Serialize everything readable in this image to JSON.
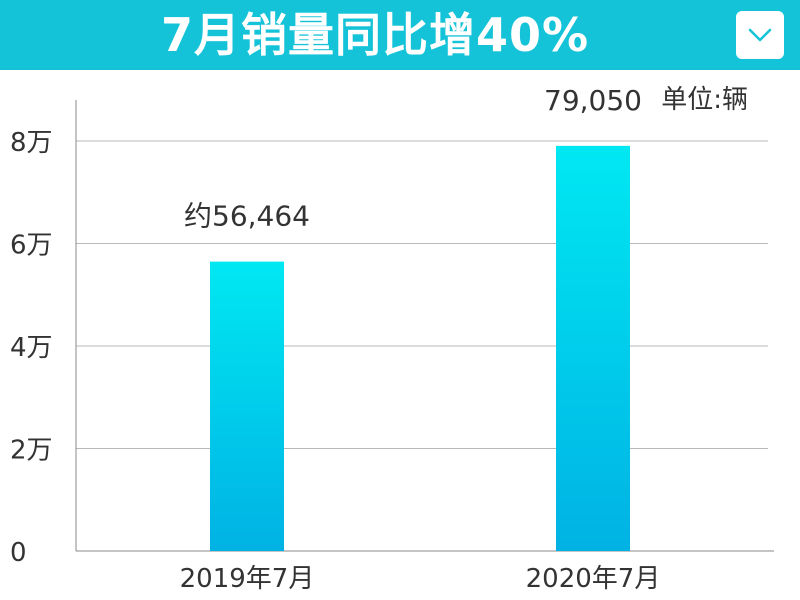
{
  "header": {
    "title": "7月销量同比增40%",
    "dropdown_icon": "chevron-down-icon"
  },
  "colors": {
    "header_bg": "#14c3d8",
    "bar_top": "#00e8f2",
    "bar_bottom": "#00b2e4",
    "grid": "#b8b8b8",
    "axis": "#888888",
    "text": "#333333"
  },
  "chart_data": {
    "type": "bar",
    "title": "7月销量同比增40%",
    "unit_label": "单位:辆",
    "categories": [
      "2019年7月",
      "2020年7月"
    ],
    "values": [
      56464,
      79050
    ],
    "value_labels": [
      "约56,464",
      "79,050"
    ],
    "ylim": [
      0,
      88000
    ],
    "yticks": [
      0,
      20000,
      40000,
      60000,
      80000
    ],
    "ytick_labels": [
      "0",
      "2万",
      "4万",
      "6万",
      "8万"
    ],
    "grid": true,
    "xlabel": "",
    "ylabel": ""
  }
}
